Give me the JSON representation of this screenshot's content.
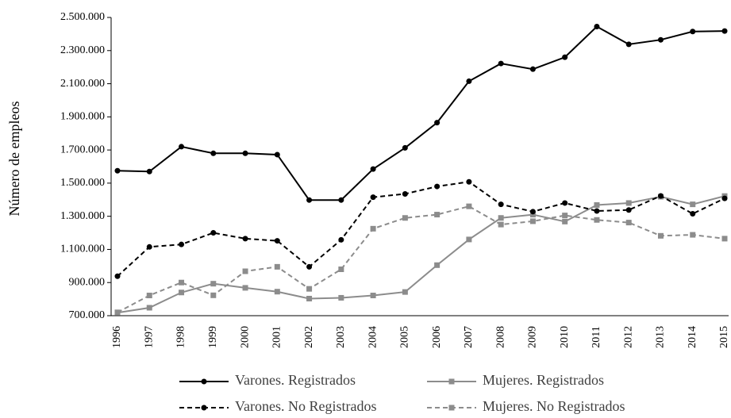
{
  "chart_data": {
    "type": "line",
    "y_label": "Número de empleos",
    "categories": [
      "1996",
      "1997",
      "1998",
      "1999",
      "2000",
      "2001",
      "2002",
      "2003",
      "2004",
      "2005",
      "2006",
      "2007",
      "2008",
      "2009",
      "2010",
      "2011",
      "2012",
      "2013",
      "2014",
      "2015"
    ],
    "series": [
      {
        "name": "Varones. Registrados",
        "color": "#000000",
        "dashed": false,
        "marker": "circle",
        "values": [
          1575000,
          1570000,
          1720000,
          1680000,
          1680000,
          1672000,
          1398000,
          1398000,
          1585000,
          1713000,
          1865000,
          2115000,
          2222000,
          2188000,
          2260000,
          2445000,
          2338000,
          2365000,
          2415000,
          2418000
        ]
      },
      {
        "name": "Mujeres. Registrados",
        "color": "#8c8c8c",
        "dashed": false,
        "marker": "square",
        "values": [
          718000,
          748000,
          840000,
          893000,
          868000,
          845000,
          803000,
          808000,
          822000,
          843000,
          1005000,
          1160000,
          1290000,
          1310000,
          1268000,
          1368000,
          1380000,
          1418000,
          1372000,
          1422000
        ]
      },
      {
        "name": "Varones. No Registrados",
        "color": "#000000",
        "dashed": true,
        "marker": "circle",
        "values": [
          938000,
          1115000,
          1130000,
          1200000,
          1165000,
          1152000,
          995000,
          1158000,
          1415000,
          1435000,
          1480000,
          1508000,
          1372000,
          1328000,
          1380000,
          1332000,
          1338000,
          1423000,
          1315000,
          1408000
        ]
      },
      {
        "name": "Mujeres. No Registrados",
        "color": "#8c8c8c",
        "dashed": true,
        "marker": "square",
        "values": [
          720000,
          822000,
          900000,
          823000,
          968000,
          995000,
          862000,
          980000,
          1225000,
          1290000,
          1310000,
          1360000,
          1250000,
          1270000,
          1305000,
          1278000,
          1262000,
          1182000,
          1188000,
          1165000
        ]
      }
    ],
    "ylim": [
      700000,
      2500000
    ],
    "yticks": [
      {
        "value": 700000,
        "label": "700.000"
      },
      {
        "value": 900000,
        "label": "900.000"
      },
      {
        "value": 1100000,
        "label": "1.100.000"
      },
      {
        "value": 1300000,
        "label": "1.300.000"
      },
      {
        "value": 1500000,
        "label": "1.500.000"
      },
      {
        "value": 1700000,
        "label": "1.700.000"
      },
      {
        "value": 1900000,
        "label": "1.900.000"
      },
      {
        "value": 2100000,
        "label": "2.100.000"
      },
      {
        "value": 2300000,
        "label": "2.300.000"
      },
      {
        "value": 2500000,
        "label": "2.500.000"
      }
    ],
    "grid": false
  }
}
